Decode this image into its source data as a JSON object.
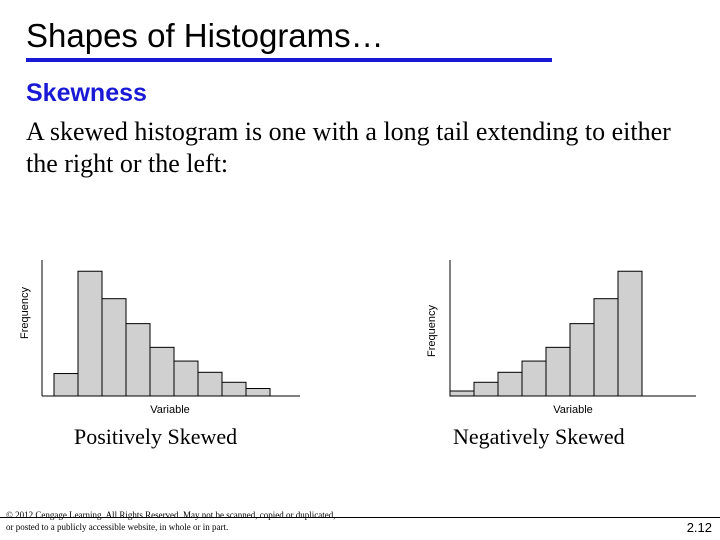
{
  "slide": {
    "title": "Shapes of Histograms…",
    "subtitle": "Skewness",
    "body": "A skewed histogram is one with a long tail extending to either the right or the left:",
    "copyright": "© 2012 Cengage Learning. All Rights Reserved. May not be scanned, copied or duplicated, or posted to a publicly accessible website, in whole or in part.",
    "page_number": "2.12",
    "accent_color": "#1a1ad6"
  },
  "chart_data": [
    {
      "type": "bar",
      "title": "",
      "caption": "Positively Skewed",
      "xlabel": "Variable",
      "ylabel": "Frequency",
      "values": [
        18,
        100,
        78,
        58,
        39,
        28,
        19,
        11,
        6
      ],
      "ylim": [
        0,
        105
      ],
      "bar_color": "#d0d0d0",
      "grid": false
    },
    {
      "type": "bar",
      "title": "",
      "caption": "Negatively Skewed",
      "xlabel": "Variable",
      "ylabel": "Frequency",
      "values": [
        4,
        11,
        19,
        28,
        39,
        58,
        78,
        100
      ],
      "ylim": [
        0,
        105
      ],
      "bar_color": "#d0d0d0",
      "grid": false
    }
  ]
}
